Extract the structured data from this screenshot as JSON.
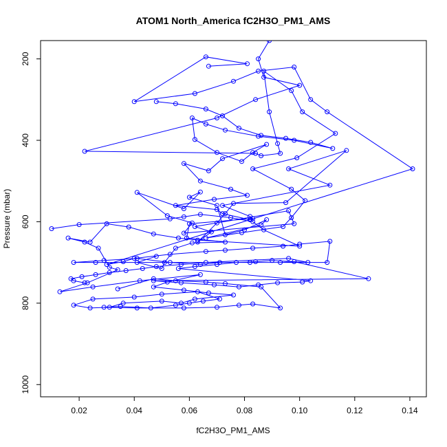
{
  "chart_data": {
    "type": "line",
    "title": "ATOM1 North_America fC2H3O_PM1_AMS",
    "xlabel": "fC2H3O_PM1_AMS",
    "ylabel": "Pressure (mbar)",
    "xlim": [
      0.006,
      0.146
    ],
    "ylim": [
      1030,
      155
    ],
    "y_reversed": true,
    "x_ticks": [
      0.02,
      0.04,
      0.06,
      0.08,
      0.1,
      0.12,
      0.14
    ],
    "x_tick_labels": [
      "0.02",
      "0.04",
      "0.06",
      "0.08",
      "0.10",
      "0.12",
      "0.14"
    ],
    "y_ticks": [
      200,
      400,
      600,
      800,
      1000
    ],
    "y_tick_labels": [
      "200",
      "400",
      "600",
      "800",
      "1000"
    ],
    "grid": false,
    "series_color": "#0000ff",
    "marker": "open-circle",
    "series": [
      {
        "x": [
          0.089,
          0.085,
          0.087,
          0.1,
          0.084,
          0.07,
          0.022,
          0.084,
          0.086,
          0.093,
          0.092,
          0.089,
          0.087,
          0.097,
          0.101,
          0.113,
          0.099,
          0.083,
          0.097,
          0.102,
          0.097,
          0.094,
          0.079,
          0.066,
          0.086,
          0.088,
          0.08,
          0.073,
          0.07,
          0.06,
          0.064,
          0.058,
          0.041,
          0.052,
          0.061,
          0.058,
          0.098,
          0.096,
          0.062,
          0.068,
          0.063,
          0.07,
          0.073,
          0.076,
          0.095,
          0.117,
          0.096,
          0.111,
          0.072,
          0.082,
          0.083,
          0.06,
          0.059,
          0.073,
          0.061,
          0.055,
          0.051,
          0.05,
          0.041,
          0.048
        ],
        "y": [
          155,
          200,
          245,
          265,
          300,
          345,
          427,
          432,
          438,
          432,
          408,
          330,
          230,
          278,
          330,
          383,
          443,
          470,
          520,
          548,
          590,
          612,
          627,
          640,
          608,
          595,
          620,
          632,
          560,
          540,
          527,
          568,
          528,
          585,
          603,
          628,
          605,
          573,
          612,
          625,
          650,
          603,
          580,
          555,
          553,
          425,
          470,
          510,
          560,
          587,
          592,
          605,
          640,
          650,
          652,
          665,
          700,
          715,
          700,
          685
        ]
      },
      {
        "x": [
          0.01,
          0.02,
          0.053,
          0.058,
          0.064,
          0.075,
          0.083,
          0.087,
          0.1,
          0.063,
          0.056,
          0.047,
          0.038,
          0.03,
          0.024,
          0.016,
          0.022,
          0.027,
          0.031,
          0.034,
          0.023,
          0.013,
          0.025,
          0.042,
          0.064,
          0.052,
          0.047,
          0.058,
          0.067,
          0.076,
          0.062,
          0.057,
          0.05,
          0.036,
          0.031,
          0.024,
          0.018,
          0.025,
          0.04,
          0.05,
          0.063,
          0.071,
          0.065,
          0.06,
          0.055,
          0.046,
          0.035,
          0.029,
          0.041,
          0.058,
          0.07,
          0.078,
          0.083,
          0.093,
          0.086,
          0.073,
          0.066,
          0.055,
          0.047,
          0.034
        ],
        "y": [
          617,
          607,
          593,
          588,
          582,
          590,
          600,
          620,
          660,
          645,
          640,
          630,
          613,
          605,
          650,
          640,
          650,
          665,
          712,
          718,
          750,
          772,
          760,
          745,
          730,
          748,
          760,
          768,
          775,
          780,
          790,
          800,
          795,
          800,
          810,
          812,
          805,
          790,
          785,
          778,
          772,
          790,
          795,
          800,
          805,
          812,
          808,
          810,
          812,
          812,
          810,
          805,
          802,
          812,
          760,
          752,
          748,
          745,
          740,
          765
        ]
      },
      {
        "x": [
          0.067,
          0.081,
          0.066,
          0.04,
          0.062,
          0.076,
          0.085,
          0.098,
          0.104,
          0.11,
          0.141,
          0.03,
          0.036,
          0.04,
          0.053,
          0.066,
          0.073,
          0.083,
          0.094,
          0.1,
          0.111,
          0.11,
          0.026,
          0.018,
          0.029,
          0.041,
          0.053,
          0.064,
          0.071,
          0.082,
          0.093,
          0.098,
          0.125,
          0.047,
          0.057,
          0.069,
          0.078,
          0.085,
          0.092,
          0.101,
          0.104,
          0.056,
          0.062,
          0.07,
          0.077,
          0.084,
          0.09,
          0.103,
          0.096,
          0.066,
          0.057,
          0.048,
          0.043,
          0.037,
          0.031,
          0.026,
          0.021,
          0.017,
          0.018,
          0.022
        ],
        "y": [
          218,
          212,
          195,
          305,
          285,
          255,
          230,
          220,
          300,
          330,
          470,
          705,
          698,
          690,
          680,
          673,
          670,
          665,
          660,
          655,
          648,
          700,
          700,
          700,
          695,
          690,
          700,
          705,
          700,
          700,
          700,
          698,
          740,
          745,
          750,
          755,
          760,
          755,
          750,
          748,
          745,
          715,
          710,
          705,
          700,
          698,
          695,
          700,
          690,
          700,
          705,
          710,
          715,
          720,
          725,
          730,
          735,
          740,
          745,
          750
        ]
      },
      {
        "x": [
          0.048,
          0.055,
          0.066,
          0.072,
          0.078,
          0.086,
          0.095,
          0.104,
          0.112,
          0.098,
          0.085,
          0.073,
          0.066,
          0.061,
          0.062,
          0.07,
          0.079,
          0.083,
          0.088,
          0.072,
          0.067,
          0.058,
          0.064,
          0.075,
          0.081,
          0.069,
          0.055,
          0.07,
          0.072,
          0.082
        ],
        "y": [
          305,
          310,
          323,
          340,
          370,
          388,
          395,
          405,
          420,
          400,
          390,
          375,
          360,
          345,
          398,
          430,
          452,
          430,
          410,
          445,
          475,
          457,
          500,
          520,
          535,
          545,
          560,
          570,
          580,
          595
        ]
      }
    ]
  }
}
